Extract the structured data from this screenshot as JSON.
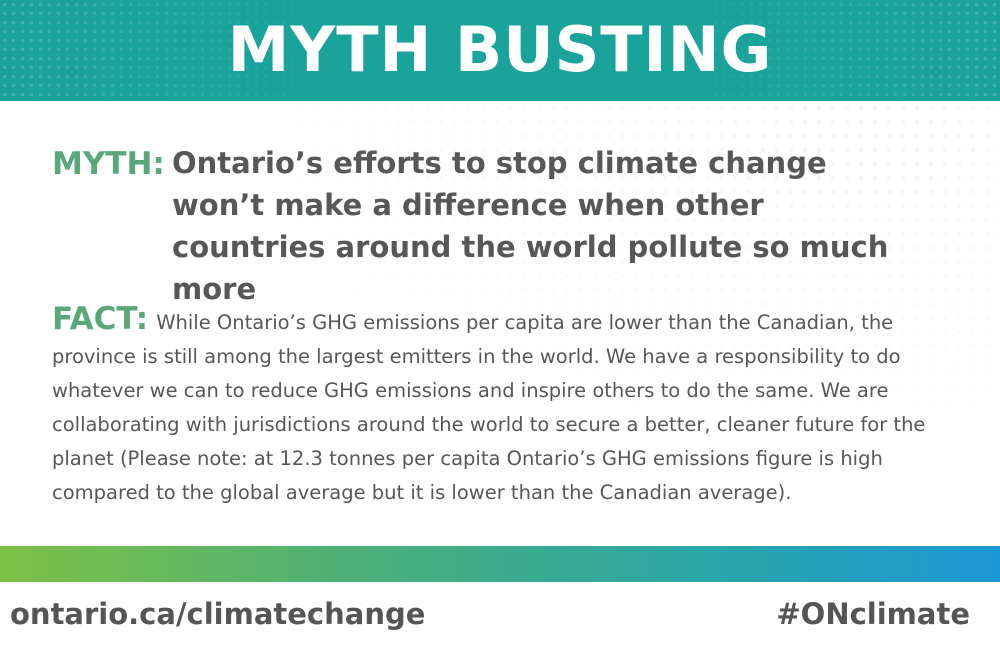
{
  "header": {
    "title": "MYTH BUSTING",
    "color": "#1aa39b"
  },
  "myth": {
    "label": "MYTH:",
    "text": "Ontario’s efforts to stop climate change won’t make a difference when other countries around the world pollute so much more"
  },
  "fact": {
    "label": "FACT:",
    "text": "While Ontario’s GHG emissions per capita are lower than the Canadian, the province is still among the largest emitters in the world. We have a responsibility to do whatever we can to reduce GHG emissions and inspire others to do the same. We are collaborating with jurisdictions around the world to secure a better, cleaner future for the planet (Please note: at 12.3 tonnes per capita Ontario’s GHG emissions figure is high compared to the global average but it is lower than the Canadian average)."
  },
  "footer": {
    "url": "ontario.ca/climatechange",
    "hashtag": "#ONclimate"
  },
  "colors": {
    "accent_green": "#5aa87a",
    "text_gray": "#575757",
    "bar_start": "#7cc145",
    "bar_end": "#1c97d6"
  }
}
